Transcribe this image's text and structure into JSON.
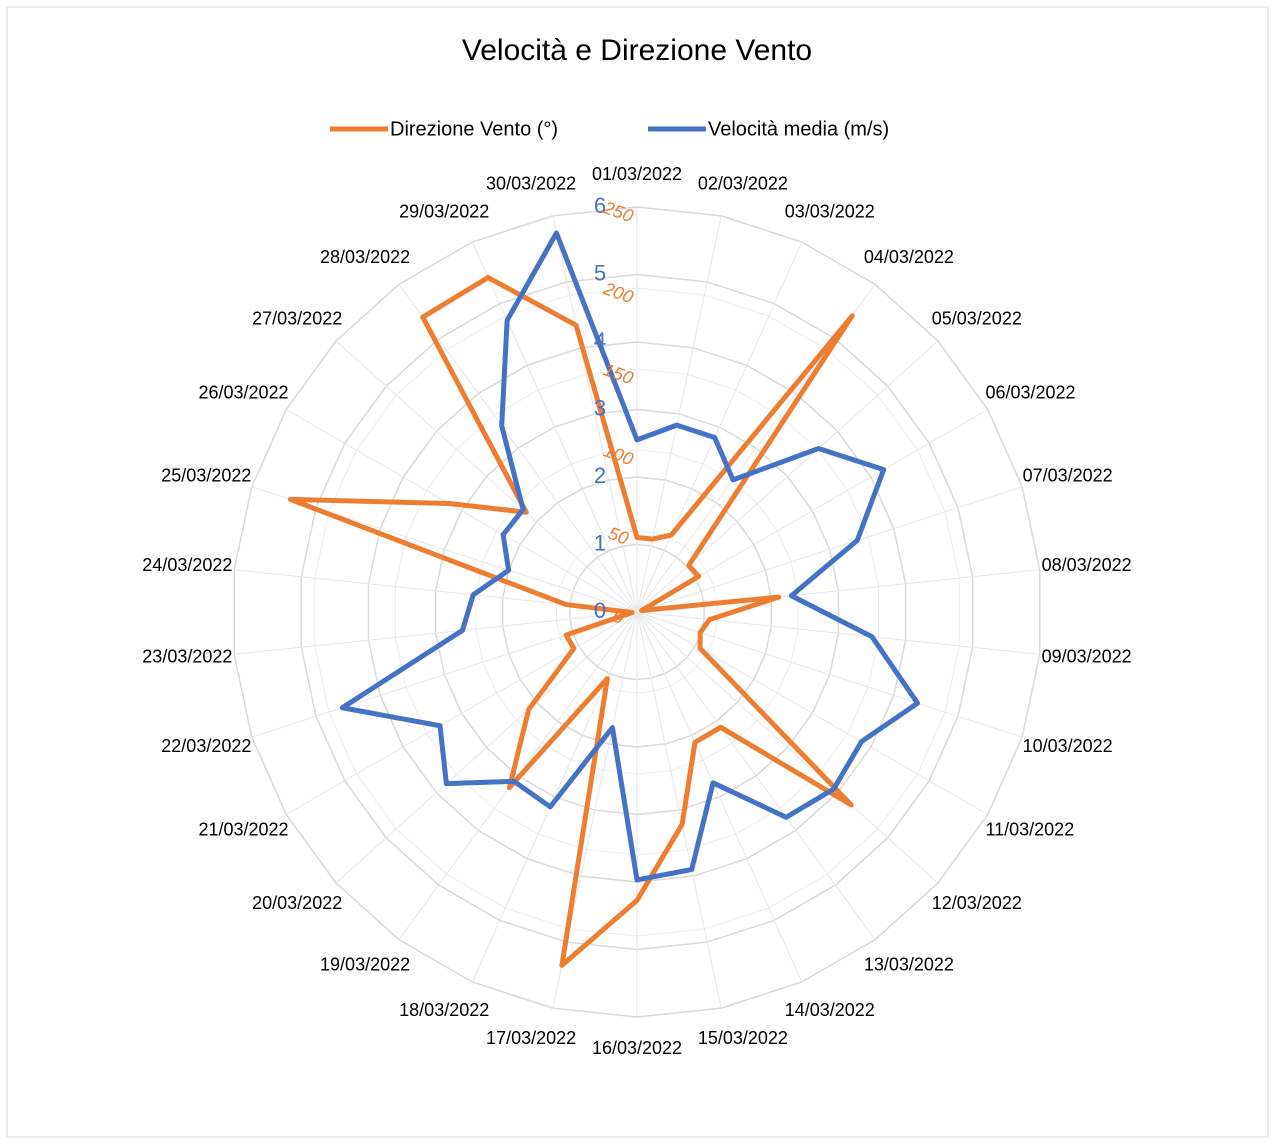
{
  "chart_data": {
    "type": "radar",
    "title": "Velocità e Direzione Vento",
    "categories": [
      "01/03/2022",
      "02/03/2022",
      "03/03/2022",
      "04/03/2022",
      "05/03/2022",
      "06/03/2022",
      "07/03/2022",
      "08/03/2022",
      "09/03/2022",
      "10/03/2022",
      "11/03/2022",
      "12/03/2022",
      "13/03/2022",
      "14/03/2022",
      "15/03/2022",
      "16/03/2022",
      "17/03/2022",
      "18/03/2022",
      "19/03/2022",
      "20/03/2022",
      "21/03/2022",
      "22/03/2022",
      "23/03/2022",
      "24/03/2022",
      "25/03/2022",
      "26/03/2022",
      "27/03/2022",
      "28/03/2022",
      "29/03/2022",
      "30/03/2022"
    ],
    "series": [
      {
        "name": "Direzione Vento  (°)",
        "color": "#ed7d31",
        "values": [
          46,
          46,
          52,
          226,
          43,
          44,
          3,
          88,
          45,
          41,
          45,
          178,
          88,
          88,
          134,
          178,
          223,
          45,
          134,
          90,
          45,
          46,
          3,
          44,
          225,
          134,
          92,
          225,
          226,
          181
        ]
      },
      {
        "name": "Velocità media (m/s)",
        "color": "#4472c4",
        "axis": "y2",
        "values": [
          2.55,
          2.83,
          2.83,
          2.42,
          3.62,
          4.22,
          3.43,
          2.3,
          3.5,
          4.37,
          3.84,
          3.92,
          3.76,
          2.77,
          3.9,
          3.97,
          1.75,
          3.16,
          3.1,
          3.8,
          3.37,
          4.59,
          2.6,
          2.44,
          2.0,
          2.29,
          2.27,
          3.41,
          4.73,
          5.74
        ]
      }
    ],
    "ylim": [
      0,
      250
    ],
    "yticks": [
      0,
      50,
      100,
      150,
      200,
      250
    ],
    "y2lim": [
      0,
      6
    ],
    "y2ticks": [
      0,
      1,
      2,
      3,
      4,
      5,
      6
    ],
    "grid": true,
    "legend": "top"
  }
}
